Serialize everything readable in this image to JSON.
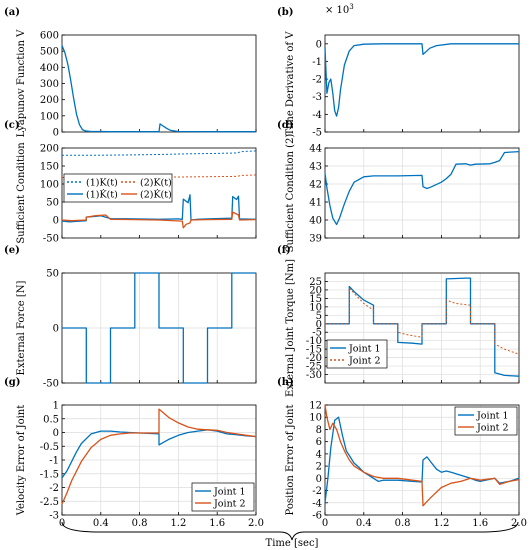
{
  "colors": {
    "blue": "#0072BD",
    "orange": "#D95319",
    "lightblue": "#4DBEEE",
    "grid": "#dcdcdc"
  },
  "x_label": "Time [sec]",
  "chart_data": [
    {
      "id": "a",
      "panel_label": "(a)",
      "type": "line",
      "ylabel": "Lyapunov Function V",
      "xlim": [
        0,
        2.0
      ],
      "ylim": [
        0,
        600
      ],
      "yticks": [
        0,
        100,
        200,
        300,
        400,
        500,
        600
      ],
      "xticks": [],
      "grid": false,
      "series": [
        {
          "name": "",
          "color": "blue",
          "dash": "solid",
          "x": [
            0,
            0.03,
            0.06,
            0.09,
            0.12,
            0.15,
            0.18,
            0.21,
            0.24,
            0.3,
            0.4,
            0.5,
            0.7,
            1.0,
            1.01,
            1.04,
            1.08,
            1.12,
            1.2,
            1.5,
            2.0
          ],
          "y": [
            535,
            490,
            420,
            320,
            210,
            110,
            45,
            15,
            7,
            3,
            3,
            2,
            2,
            2,
            50,
            38,
            22,
            10,
            3,
            2,
            2
          ]
        }
      ]
    },
    {
      "id": "b",
      "panel_label": "(b)",
      "type": "line",
      "ylabel": "Time Derivative of V",
      "exponent_label": "× 10",
      "exponent_power": "3",
      "xlim": [
        0,
        2.0
      ],
      "ylim": [
        -5,
        0.5
      ],
      "yticks": [
        -5,
        -4,
        -3,
        -2,
        -1,
        0
      ],
      "xticks": [],
      "grid": false,
      "series": [
        {
          "name": "",
          "color": "blue",
          "dash": "solid",
          "x": [
            0,
            0.02,
            0.04,
            0.06,
            0.08,
            0.1,
            0.12,
            0.14,
            0.16,
            0.2,
            0.25,
            0.3,
            0.4,
            0.6,
            1.0,
            1.01,
            1.04,
            1.08,
            1.15,
            1.3,
            2.0
          ],
          "y": [
            -0.2,
            -2.8,
            -2.2,
            -2.0,
            -2.8,
            -3.8,
            -4.1,
            -3.6,
            -2.6,
            -1.2,
            -0.4,
            -0.1,
            -0.02,
            0,
            0,
            -0.6,
            -0.45,
            -0.25,
            -0.1,
            0,
            0
          ]
        }
      ]
    },
    {
      "id": "c",
      "panel_label": "(c)",
      "type": "line",
      "ylabel": "Sufficient Condition",
      "xlim": [
        0,
        2.0
      ],
      "ylim": [
        -50,
        200
      ],
      "yticks": [
        -50,
        0,
        50,
        100,
        150,
        200
      ],
      "xticks": [],
      "grid": false,
      "legend": {
        "position": "middle-left"
      },
      "series": [
        {
          "name": "(1)K(t)",
          "color": "blue",
          "dash": "dot",
          "x": [
            0,
            0.4,
            0.8,
            1.0,
            1.3,
            1.6,
            1.8,
            1.85,
            2.0
          ],
          "y": [
            180,
            180,
            181,
            182,
            184,
            185,
            186,
            190,
            192
          ]
        },
        {
          "name": "(2)K(t)",
          "color": "orange",
          "dash": "dot",
          "x": [
            0,
            0.6,
            1.0,
            1.4,
            1.8,
            1.85,
            2.0
          ],
          "y": [
            118,
            118,
            119,
            120,
            121,
            124,
            125
          ]
        },
        {
          "name": "(1)K̇(t)",
          "color": "blue",
          "dash": "solid",
          "x": [
            0,
            0.08,
            0.15,
            0.25,
            0.249,
            0.251,
            0.35,
            0.4,
            0.5,
            0.75,
            1.0,
            1.2,
            1.24,
            1.25,
            1.3,
            1.32,
            1.33,
            1.4,
            1.5,
            1.75,
            1.76,
            1.8,
            1.82,
            1.83,
            2.0
          ],
          "y": [
            -3,
            -5,
            -4,
            -2,
            -2,
            8,
            10,
            12,
            4,
            3,
            2,
            3,
            2,
            58,
            48,
            70,
            0,
            2,
            3,
            5,
            65,
            57,
            66,
            3,
            2
          ]
        },
        {
          "name": "(2)K̇(t)",
          "color": "orange",
          "dash": "solid",
          "x": [
            0,
            0.1,
            0.25,
            0.251,
            0.35,
            0.45,
            0.5,
            0.75,
            1.0,
            1.24,
            1.25,
            1.28,
            1.32,
            1.33,
            1.5,
            1.75,
            1.76,
            1.82,
            1.83,
            2.0
          ],
          "y": [
            0,
            -2,
            0,
            8,
            12,
            14,
            2,
            1,
            0,
            -3,
            -22,
            -12,
            -8,
            0,
            1,
            2,
            22,
            14,
            0,
            1
          ]
        }
      ]
    },
    {
      "id": "d",
      "panel_label": "(d)",
      "type": "line",
      "ylabel": "Sufficient Condition (2)",
      "xlim": [
        0,
        2.0
      ],
      "ylim": [
        39,
        44
      ],
      "yticks": [
        39,
        40,
        41,
        42,
        43,
        44
      ],
      "xticks": [],
      "grid": true,
      "series": [
        {
          "name": "",
          "color": "blue",
          "dash": "solid",
          "x": [
            0,
            0.02,
            0.05,
            0.08,
            0.12,
            0.15,
            0.2,
            0.25,
            0.3,
            0.4,
            0.5,
            0.75,
            1.0,
            1.01,
            1.05,
            1.1,
            1.2,
            1.25,
            1.3,
            1.35,
            1.45,
            1.5,
            1.55,
            1.7,
            1.75,
            1.8,
            1.85,
            2.0
          ],
          "y": [
            42.6,
            41.8,
            40.8,
            40.1,
            39.75,
            40.1,
            40.9,
            41.6,
            42.1,
            42.4,
            42.45,
            42.45,
            42.48,
            41.85,
            41.75,
            41.85,
            42.1,
            42.3,
            42.55,
            43.1,
            43.12,
            43.05,
            43.1,
            43.12,
            43.2,
            43.3,
            43.75,
            43.8
          ]
        }
      ]
    },
    {
      "id": "e",
      "panel_label": "(e)",
      "type": "line",
      "ylabel": "External Force [N]",
      "xlim": [
        0,
        2.0
      ],
      "ylim": [
        -50,
        50
      ],
      "yticks": [
        -50,
        0,
        50
      ],
      "xticks": [],
      "grid": true,
      "series": [
        {
          "name": "",
          "color": "blue",
          "dash": "solid",
          "x": [
            0,
            0.25,
            0.25,
            0.5,
            0.5,
            0.75,
            0.75,
            1.0,
            1.0,
            1.25,
            1.25,
            1.5,
            1.5,
            1.75,
            1.75,
            2.0
          ],
          "y": [
            0,
            0,
            -50,
            -50,
            0,
            0,
            50,
            50,
            0,
            0,
            -50,
            -50,
            0,
            0,
            50,
            50
          ]
        }
      ]
    },
    {
      "id": "f",
      "panel_label": "(f)",
      "type": "line",
      "ylabel": "External Joint Torque [Nm]",
      "xlim": [
        0,
        2.0
      ],
      "ylim": [
        -35,
        30
      ],
      "yticks": [
        -30,
        -25,
        -20,
        -15,
        -10,
        -5,
        0,
        5,
        10,
        15,
        20,
        25
      ],
      "xticks": [],
      "grid": true,
      "legend": {
        "position": "bottom-left"
      },
      "series": [
        {
          "name": "Joint 1",
          "color": "blue",
          "dash": "solid",
          "x": [
            0,
            0.25,
            0.25,
            0.3,
            0.4,
            0.5,
            0.5,
            0.75,
            0.75,
            0.9,
            1.0,
            1.0,
            1.25,
            1.25,
            1.45,
            1.5,
            1.5,
            1.75,
            1.75,
            1.85,
            2.0
          ],
          "y": [
            0,
            0,
            22,
            19,
            14,
            11,
            0,
            0,
            -11,
            -11.5,
            -12,
            0,
            0,
            26.5,
            27,
            27,
            0,
            0,
            -29,
            -30.5,
            -31
          ]
        },
        {
          "name": "Joint 2",
          "color": "orange",
          "dash": "dot",
          "x": [
            0,
            0.25,
            0.25,
            0.3,
            0.4,
            0.5,
            0.5,
            0.75,
            0.75,
            0.85,
            1.0,
            1.0,
            1.25,
            1.25,
            1.35,
            1.5,
            1.5,
            1.75,
            1.75,
            1.85,
            2.0
          ],
          "y": [
            0,
            0,
            21,
            18,
            12,
            8,
            0,
            0,
            -5,
            -6.5,
            -8,
            0,
            0,
            14,
            12,
            11,
            0,
            0,
            -12,
            -15,
            -18
          ]
        }
      ]
    },
    {
      "id": "g",
      "panel_label": "(g)",
      "type": "line",
      "ylabel": "Velocity Error of Joint",
      "xlim": [
        0,
        2.0
      ],
      "ylim": [
        -3,
        1
      ],
      "yticks": [
        -3,
        -2.5,
        -2,
        -1.5,
        -1,
        -0.5,
        0,
        0.5,
        1
      ],
      "xticks": [
        0,
        0.4,
        0.8,
        1.2,
        1.6,
        2.0
      ],
      "xticklabels": [
        "0",
        "0.4",
        "0.8",
        "1.2",
        "1.6",
        "2.0"
      ],
      "grid": true,
      "legend": {
        "position": "bottom-right"
      },
      "series": [
        {
          "name": "Joint 1",
          "color": "blue",
          "dash": "solid",
          "x": [
            0,
            0.05,
            0.1,
            0.15,
            0.2,
            0.3,
            0.4,
            0.5,
            0.6,
            0.8,
            1.0,
            1.0,
            1.05,
            1.1,
            1.2,
            1.3,
            1.4,
            1.5,
            1.6,
            1.7,
            1.8,
            1.9,
            2.0
          ],
          "y": [
            -1.65,
            -1.4,
            -1.05,
            -0.7,
            -0.4,
            -0.05,
            0.05,
            0.05,
            0.02,
            -0.02,
            -0.05,
            -0.45,
            -0.35,
            -0.25,
            -0.1,
            0.0,
            0.05,
            0.1,
            0.05,
            -0.05,
            -0.08,
            -0.12,
            -0.15
          ]
        },
        {
          "name": "Joint 2",
          "color": "orange",
          "dash": "solid",
          "x": [
            0,
            0.05,
            0.1,
            0.2,
            0.3,
            0.4,
            0.5,
            0.6,
            0.7,
            0.8,
            1.0,
            1.0,
            1.05,
            1.1,
            1.2,
            1.3,
            1.4,
            1.5,
            1.6,
            1.7,
            1.8,
            1.9,
            2.0
          ],
          "y": [
            -2.6,
            -2.2,
            -1.75,
            -1.05,
            -0.55,
            -0.25,
            -0.1,
            -0.05,
            -0.02,
            -0.02,
            -0.02,
            0.85,
            0.7,
            0.55,
            0.35,
            0.2,
            0.12,
            0.1,
            0.08,
            0.0,
            -0.05,
            -0.1,
            -0.15
          ]
        }
      ]
    },
    {
      "id": "h",
      "panel_label": "(h)",
      "type": "line",
      "ylabel": "Position Error of Joint",
      "xlim": [
        0,
        2.0
      ],
      "ylim": [
        -6,
        12
      ],
      "yticks": [
        -6,
        -4,
        -2,
        0,
        2,
        4,
        6,
        8,
        10,
        12
      ],
      "xticks": [
        0,
        0.4,
        0.8,
        1.2,
        1.6,
        2.0
      ],
      "xticklabels": [
        "0",
        "0.4",
        "0.8",
        "1.2",
        "1.6",
        "2.0"
      ],
      "grid": true,
      "legend": {
        "position": "top-right"
      },
      "series": [
        {
          "name": "Joint 1",
          "color": "blue",
          "dash": "solid",
          "x": [
            0,
            0.03,
            0.06,
            0.1,
            0.14,
            0.18,
            0.22,
            0.26,
            0.3,
            0.35,
            0.4,
            0.5,
            0.55,
            0.6,
            0.75,
            0.9,
            1.0,
            1.01,
            1.05,
            1.1,
            1.15,
            1.2,
            1.25,
            1.3,
            1.4,
            1.5,
            1.55,
            1.6,
            1.75,
            1.8,
            1.9,
            2.0
          ],
          "y": [
            -4,
            0,
            5,
            9.5,
            10,
            7,
            4.5,
            3.5,
            2.5,
            1.8,
            1,
            0,
            -0.5,
            -0.3,
            -0.3,
            -0.5,
            -0.6,
            3,
            3.5,
            2.5,
            1.5,
            1,
            1.2,
            1,
            0.5,
            0,
            -0.3,
            -0.5,
            0,
            -0.8,
            -0.5,
            0
          ]
        },
        {
          "name": "Joint 2",
          "color": "orange",
          "dash": "solid",
          "x": [
            0,
            0.02,
            0.05,
            0.08,
            0.12,
            0.16,
            0.2,
            0.25,
            0.3,
            0.4,
            0.5,
            0.6,
            0.75,
            0.9,
            1.0,
            1.01,
            1.05,
            1.1,
            1.2,
            1.3,
            1.4,
            1.5,
            1.6,
            1.75,
            1.8,
            1.9,
            2.0
          ],
          "y": [
            12,
            10,
            8,
            9,
            8,
            6,
            4.5,
            3,
            2,
            1,
            0.3,
            0,
            0,
            -0.3,
            -0.5,
            -4.5,
            -3.8,
            -3,
            -1.5,
            -0.8,
            -0.5,
            0,
            -0.3,
            0,
            -1,
            -0.5,
            -0.2
          ]
        }
      ]
    }
  ]
}
